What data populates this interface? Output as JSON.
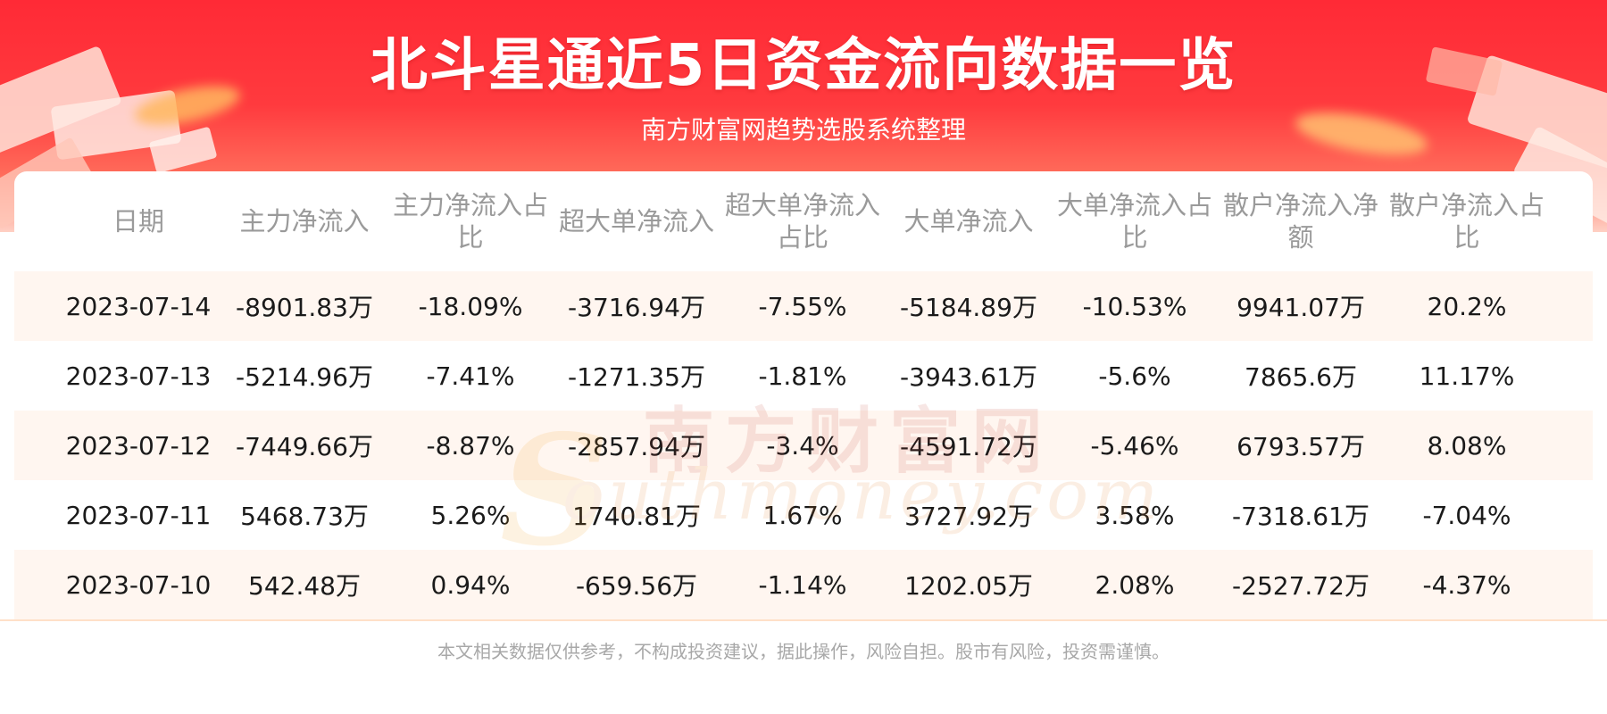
{
  "header": {
    "title": "北斗星通近5日资金流向数据一览",
    "subtitle": "南方财富网趋势选股系统整理"
  },
  "table": {
    "columns": [
      "日期",
      "主力净流入",
      "主力净流入占比",
      "超大单净流入",
      "超大单净流入占比",
      "大单净流入",
      "大单净流入占比",
      "散户净流入净额",
      "散户净流入占比"
    ],
    "rows": [
      [
        "2023-07-14",
        "-8901.83万",
        "-18.09%",
        "-3716.94万",
        "-7.55%",
        "-5184.89万",
        "-10.53%",
        "9941.07万",
        "20.2%"
      ],
      [
        "2023-07-13",
        "-5214.96万",
        "-7.41%",
        "-1271.35万",
        "-1.81%",
        "-3943.61万",
        "-5.6%",
        "7865.6万",
        "11.17%"
      ],
      [
        "2023-07-12",
        "-7449.66万",
        "-8.87%",
        "-2857.94万",
        "-3.4%",
        "-4591.72万",
        "-5.46%",
        "6793.57万",
        "8.08%"
      ],
      [
        "2023-07-11",
        "5468.73万",
        "5.26%",
        "1740.81万",
        "1.67%",
        "3727.92万",
        "3.58%",
        "-7318.61万",
        "-7.04%"
      ],
      [
        "2023-07-10",
        "542.48万",
        "0.94%",
        "-659.56万",
        "-1.14%",
        "1202.05万",
        "2.08%",
        "-2527.72万",
        "-4.37%"
      ]
    ]
  },
  "watermark": {
    "cn": "南方财富网",
    "en": "outhmoney.com",
    "letter": "S"
  },
  "footer": {
    "disclaimer": "本文相关数据仅供参考，不构成投资建议，据此操作，风险自担。股市有风险，投资需谨慎。"
  },
  "colors": {
    "banner_red": "#ff2a36",
    "row_shade": "#fff6f0",
    "header_text": "#9a9a9a",
    "cell_text": "#1a1a1a"
  }
}
